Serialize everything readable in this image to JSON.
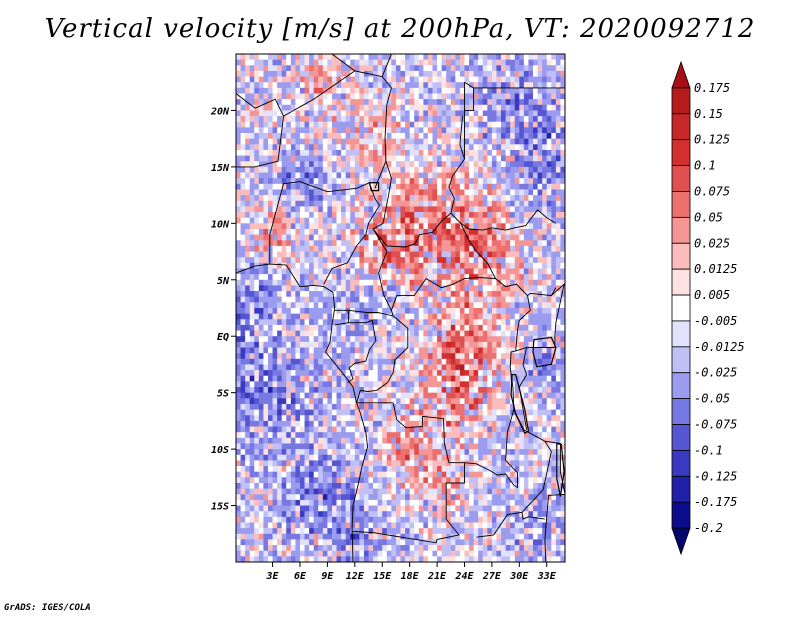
{
  "header": {
    "title": "Vertical velocity [m/s] at 200hPa, VT: 2020092712"
  },
  "footer": {
    "credit": "GrADS: IGES/COLA"
  },
  "chart_data": {
    "type": "heatmap",
    "title": "Vertical velocity [m/s] at 200hPa, VT: 2020092712",
    "variable": "Vertical velocity",
    "units": "m/s",
    "level": "200hPa",
    "valid_time": "2020092712",
    "xlim": [
      -1,
      35
    ],
    "ylim": [
      -20,
      25
    ],
    "x_ticks": [
      {
        "value": 3,
        "label": "3E"
      },
      {
        "value": 6,
        "label": "6E"
      },
      {
        "value": 9,
        "label": "9E"
      },
      {
        "value": 12,
        "label": "12E"
      },
      {
        "value": 15,
        "label": "15E"
      },
      {
        "value": 18,
        "label": "18E"
      },
      {
        "value": 21,
        "label": "21E"
      },
      {
        "value": 24,
        "label": "24E"
      },
      {
        "value": 27,
        "label": "27E"
      },
      {
        "value": 30,
        "label": "30E"
      },
      {
        "value": 33,
        "label": "33E"
      }
    ],
    "y_ticks": [
      {
        "value": 20,
        "label": "20N"
      },
      {
        "value": 15,
        "label": "15N"
      },
      {
        "value": 10,
        "label": "10N"
      },
      {
        "value": 5,
        "label": "5N"
      },
      {
        "value": 0,
        "label": "EQ"
      },
      {
        "value": -5,
        "label": "5S"
      },
      {
        "value": -10,
        "label": "10S"
      },
      {
        "value": -15,
        "label": "15S"
      }
    ],
    "colorbar": {
      "labels": [
        "0.175",
        "0.15",
        "0.125",
        "0.1",
        "0.075",
        "0.05",
        "0.025",
        "0.0125",
        "0.005",
        "-0.005",
        "-0.0125",
        "-0.025",
        "-0.05",
        "-0.075",
        "-0.1",
        "-0.125",
        "-0.175",
        "-0.2"
      ],
      "colors": [
        "#a50f15",
        "#b71c1c",
        "#c62828",
        "#d32f2f",
        "#e05050",
        "#ec7070",
        "#f59696",
        "#fabcbc",
        "#fde2e2",
        "#ffffff",
        "#e2e2fd",
        "#c0c0f6",
        "#9b9bef",
        "#7878e2",
        "#5656d2",
        "#3a3ac0",
        "#2020a8",
        "#0c0c8c",
        "#050570"
      ]
    }
  }
}
